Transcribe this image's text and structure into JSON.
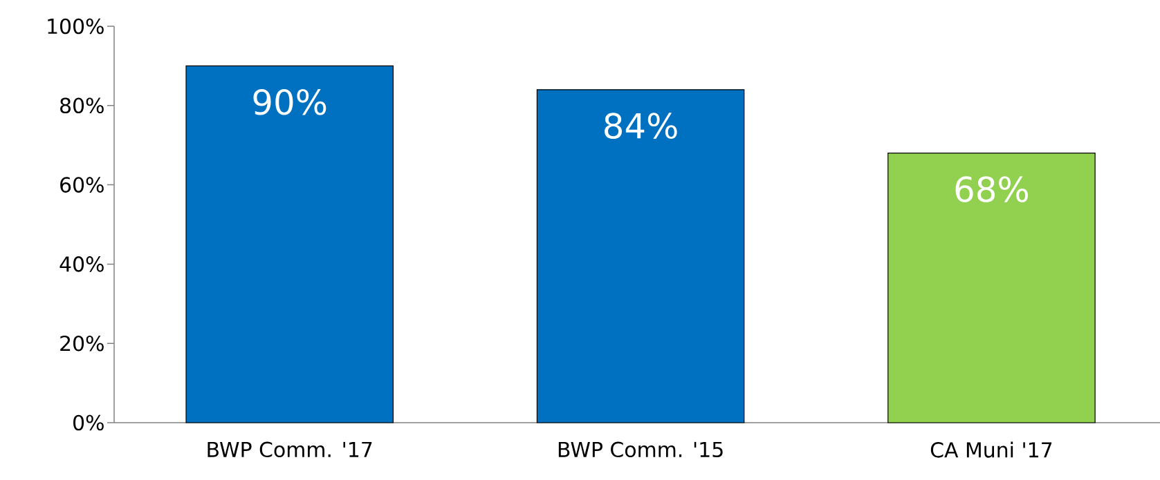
{
  "chart_data": {
    "type": "bar",
    "categories": [
      "BWP Comm. '17",
      "BWP Comm. '15",
      "CA Muni '17"
    ],
    "values": [
      90,
      84,
      68
    ],
    "colors": [
      "#0070c0",
      "#0070c0",
      "#92d050"
    ],
    "value_labels": [
      "90%",
      "84%",
      "68%"
    ],
    "ylim": [
      0,
      100
    ],
    "yticks": [
      {
        "value": 0,
        "label": "0%"
      },
      {
        "value": 20,
        "label": "20%"
      },
      {
        "value": 40,
        "label": "40%"
      },
      {
        "value": 60,
        "label": "60%"
      },
      {
        "value": 80,
        "label": "80%"
      },
      {
        "value": 100,
        "label": "100%"
      }
    ],
    "grid": false
  }
}
